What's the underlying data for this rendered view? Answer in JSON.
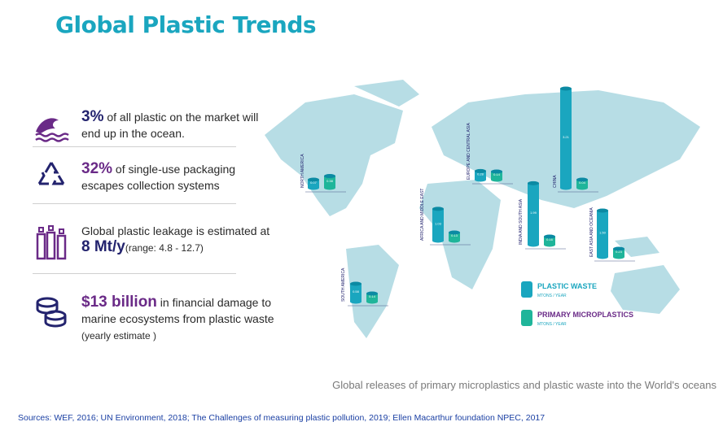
{
  "title": "Global Plastic Trends",
  "facts": [
    {
      "highlight": "3%",
      "text_a": " of all plastic on the market will",
      "text_b": "end up in the ocean.",
      "icon": "ocean-wave-icon"
    },
    {
      "highlight": "32%",
      "text_a": " of single-use packaging",
      "text_b": "escapes collection systems",
      "icon": "recycle-icon"
    },
    {
      "text_a": "Global plastic leakage is estimated at",
      "highlight": "8 Mt/y",
      "text_b": "(range: 4.8 - 12.7)",
      "icon": "plastic-bottles-icon"
    },
    {
      "highlight": "$13 billion",
      "text_a": " in financial damage to",
      "text_b": "marine ecosystems from plastic waste",
      "text_c": "(yearly estimate )",
      "icon": "coins-icon"
    }
  ],
  "map": {
    "regions": [
      {
        "name": "NORTH AMERICA",
        "waste": "0.07",
        "micro": "0.38"
      },
      {
        "name": "AFRICA AND MIDDLE EAST",
        "waste": "1.03",
        "micro": "0.13"
      },
      {
        "name": "EUROPE AND CENTRAL ASIA",
        "waste": "0.28",
        "micro": "0.14"
      },
      {
        "name": "INDIA AND SOUTH ASIA",
        "waste": "1.99",
        "micro": "0.16"
      },
      {
        "name": "CHINA",
        "waste": "3.21",
        "micro": "0.04"
      },
      {
        "name": "EAST ASIA AND OCEANIA",
        "waste": "1.50",
        "micro": "0.23"
      },
      {
        "name": "SOUTH AMERICA",
        "waste": "0.58",
        "micro": "0.14"
      }
    ],
    "legend": [
      {
        "label": "PLASTIC WASTE",
        "unit": "MTONS / YEAR",
        "color": "#1aa6bf"
      },
      {
        "label": "PRIMARY MICROPLASTICS",
        "unit": "MTONS / YEAR",
        "color": "#1fb59a"
      }
    ]
  },
  "caption": "Global releases of primary microplastics and plastic waste into the World's oceans",
  "sources": "Sources: WEF, 2016; UN Environment, 2018; The Challenges of measuring plastic pollution, 2019; Ellen Macarthur foundation NPEC, 2017",
  "colors": {
    "title": "#1aa6bf",
    "purple": "#6a2a87",
    "navy": "#23236e",
    "land": "#b7dde5"
  }
}
